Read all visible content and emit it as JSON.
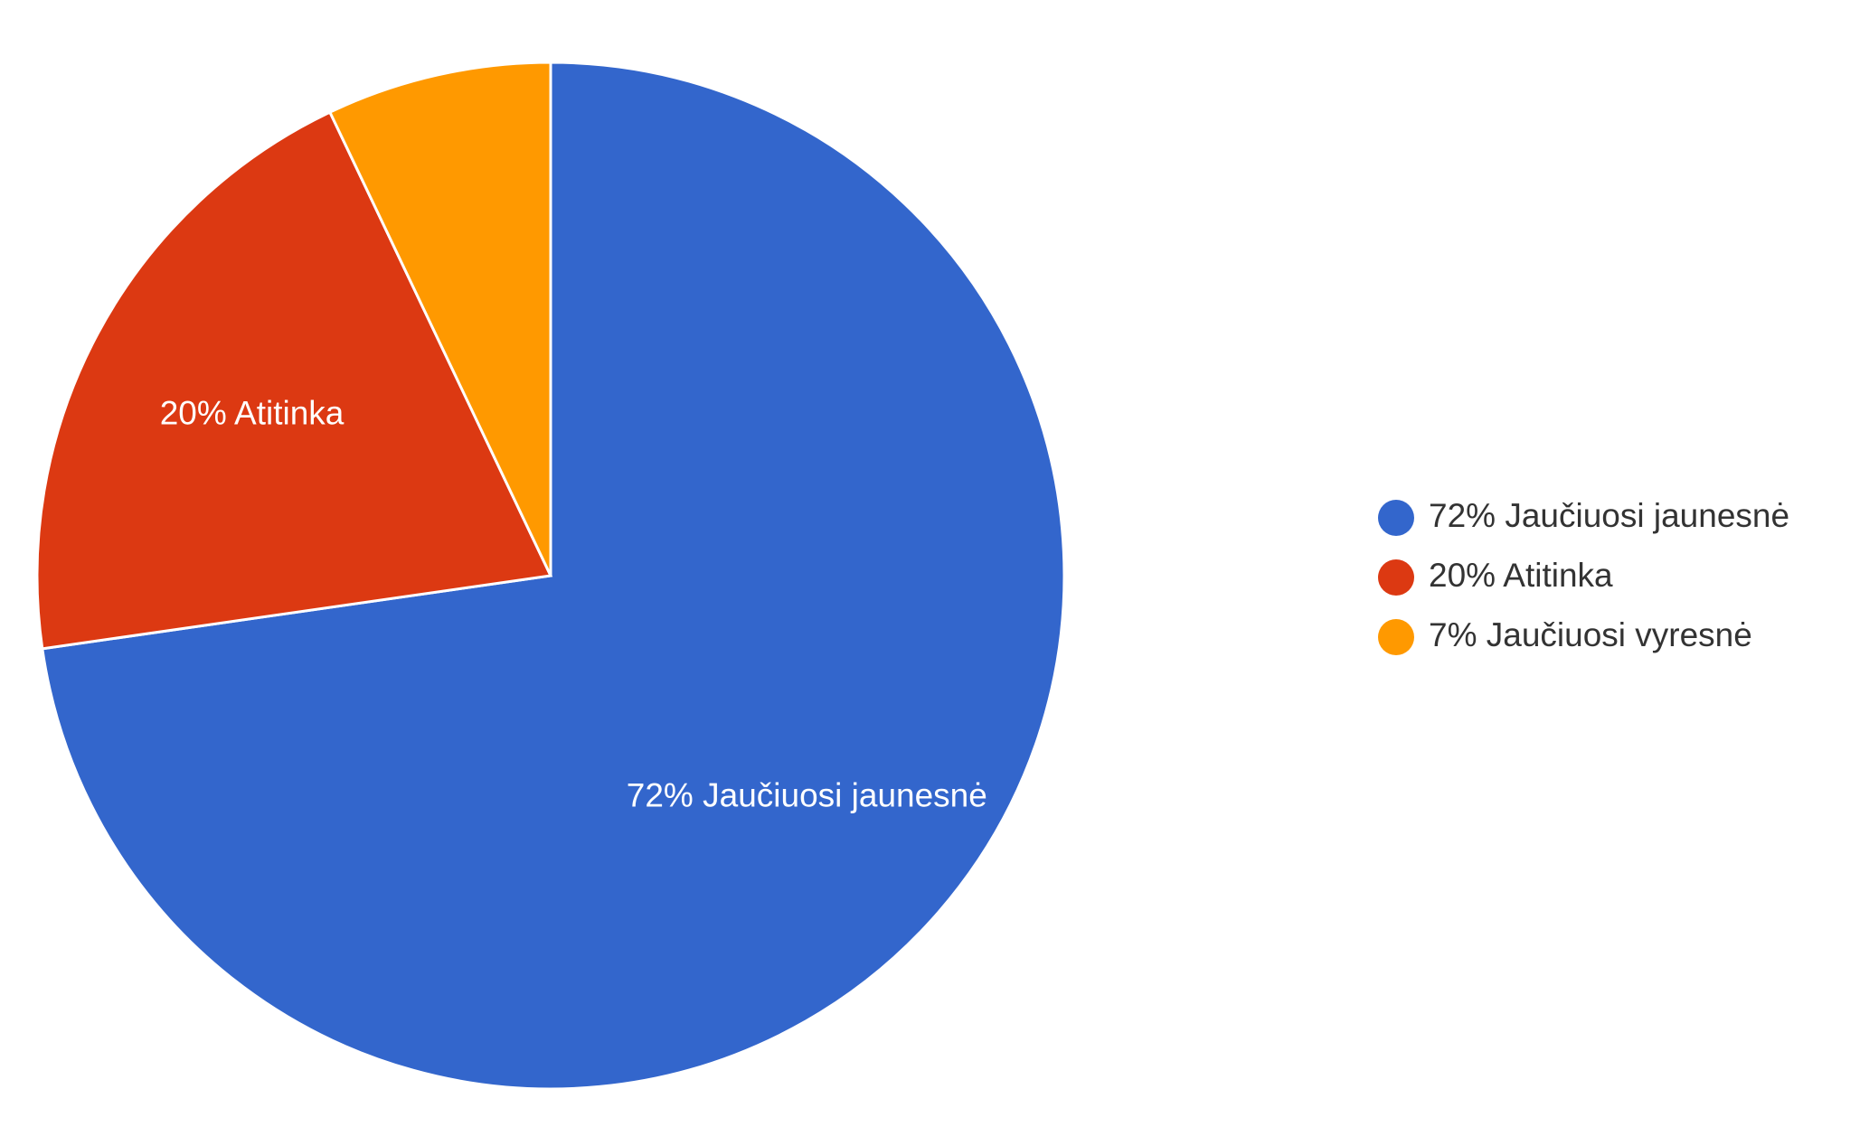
{
  "chart_data": {
    "type": "pie",
    "labels": [
      "72% Jaučiuosi jaunesnė",
      "20% Atitinka",
      "7% Jaučiuosi vyresnė"
    ],
    "values": [
      72,
      20,
      7
    ],
    "colors": [
      "#3366cc",
      "#dc3912",
      "#ff9900"
    ],
    "legend": "right"
  }
}
